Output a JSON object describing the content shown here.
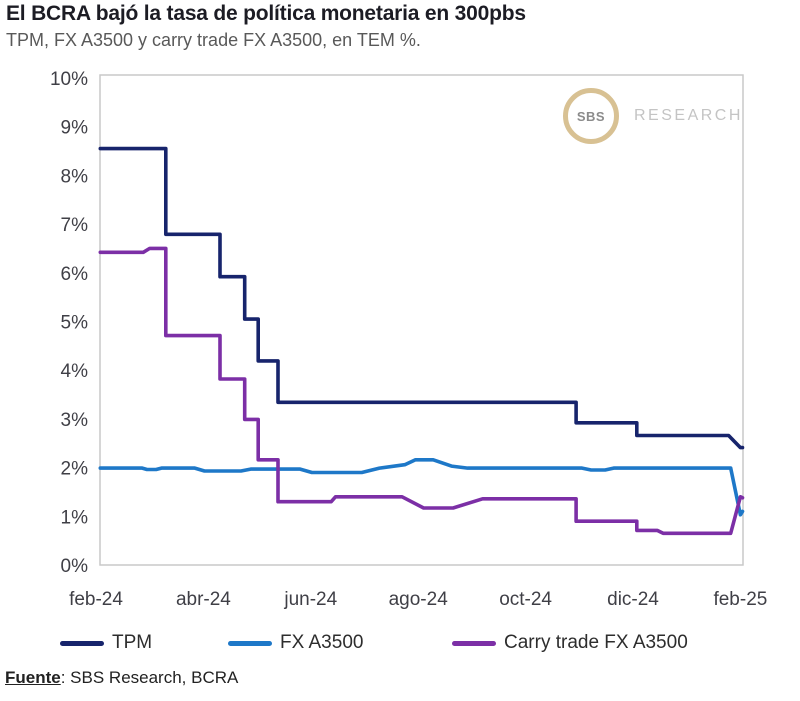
{
  "header": {
    "title": "El BCRA bajó la tasa de política monetaria en 300pbs",
    "subtitle": "TPM, FX A3500 y carry trade FX A3500, en TEM %."
  },
  "logo": {
    "text": "SBS",
    "research": "RESEARCH",
    "ring_color": "#d8c193",
    "text_color": "#8b8b8b",
    "research_color": "#c4c4c4"
  },
  "footer": {
    "source_label": "Fuente",
    "source_rest": ": SBS Research, BCRA"
  },
  "chart_data": {
    "type": "line",
    "title": "El BCRA bajó la tasa de política monetaria en 300pbs",
    "subtitle": "TPM, FX A3500 y carry trade FX A3500, en TEM %.",
    "x_unit": "months since feb-24",
    "xlim": [
      0,
      12.05
    ],
    "ylim": [
      0,
      10
    ],
    "grid": false,
    "legend_position": "bottom",
    "colors": {
      "plot_border": "#c9c9c9",
      "axis_text": "#3f3f46"
    },
    "y_ticks": [
      {
        "value": 0,
        "label": "0%"
      },
      {
        "value": 1,
        "label": "1%"
      },
      {
        "value": 2,
        "label": "2%"
      },
      {
        "value": 3,
        "label": "3%"
      },
      {
        "value": 4,
        "label": "4%"
      },
      {
        "value": 5,
        "label": "5%"
      },
      {
        "value": 6,
        "label": "6%"
      },
      {
        "value": 7,
        "label": "7%"
      },
      {
        "value": 8,
        "label": "8%"
      },
      {
        "value": 9,
        "label": "9%"
      },
      {
        "value": 10,
        "label": "10%"
      }
    ],
    "x_ticks": [
      {
        "month": 0,
        "label": "feb-24"
      },
      {
        "month": 2,
        "label": "abr-24"
      },
      {
        "month": 4,
        "label": "jun-24"
      },
      {
        "month": 6,
        "label": "ago-24"
      },
      {
        "month": 8,
        "label": "oct-24"
      },
      {
        "month": 10,
        "label": "dic-24"
      },
      {
        "month": 12,
        "label": "feb-25"
      }
    ],
    "series": [
      {
        "name": "TPM",
        "color": "#17246c",
        "points": [
          [
            0.08,
            8.55
          ],
          [
            1.3,
            8.55
          ],
          [
            1.3,
            6.79
          ],
          [
            2.31,
            6.79
          ],
          [
            2.31,
            5.92
          ],
          [
            2.77,
            5.92
          ],
          [
            2.77,
            5.05
          ],
          [
            3.02,
            5.05
          ],
          [
            3.02,
            4.19
          ],
          [
            3.39,
            4.19
          ],
          [
            3.39,
            3.34
          ],
          [
            8.94,
            3.34
          ],
          [
            8.94,
            2.92
          ],
          [
            10.07,
            2.92
          ],
          [
            10.07,
            2.66
          ],
          [
            11.78,
            2.66
          ],
          [
            12.0,
            2.41
          ],
          [
            12.04,
            2.41
          ]
        ]
      },
      {
        "name": "FX A3500",
        "color": "#1e78c8",
        "points": [
          [
            0.08,
            1.99
          ],
          [
            0.86,
            1.99
          ],
          [
            0.95,
            1.96
          ],
          [
            1.12,
            1.96
          ],
          [
            1.22,
            1.99
          ],
          [
            1.84,
            1.99
          ],
          [
            2.02,
            1.93
          ],
          [
            2.7,
            1.93
          ],
          [
            2.88,
            1.97
          ],
          [
            3.8,
            1.97
          ],
          [
            4.02,
            1.9
          ],
          [
            4.95,
            1.9
          ],
          [
            5.28,
            1.99
          ],
          [
            5.75,
            2.06
          ],
          [
            5.95,
            2.16
          ],
          [
            6.28,
            2.16
          ],
          [
            6.62,
            2.03
          ],
          [
            6.92,
            1.99
          ],
          [
            9.05,
            1.99
          ],
          [
            9.22,
            1.95
          ],
          [
            9.48,
            1.95
          ],
          [
            9.64,
            1.99
          ],
          [
            11.82,
            1.99
          ],
          [
            12.0,
            1.03
          ],
          [
            12.04,
            1.1
          ]
        ]
      },
      {
        "name": "Carry trade FX A3500",
        "color": "#7c2fa6",
        "points": [
          [
            0.08,
            6.42
          ],
          [
            0.88,
            6.42
          ],
          [
            1.0,
            6.5
          ],
          [
            1.3,
            6.5
          ],
          [
            1.3,
            4.71
          ],
          [
            2.31,
            4.71
          ],
          [
            2.31,
            3.82
          ],
          [
            2.77,
            3.82
          ],
          [
            2.77,
            2.99
          ],
          [
            3.02,
            2.99
          ],
          [
            3.02,
            2.16
          ],
          [
            3.39,
            2.16
          ],
          [
            3.39,
            1.3
          ],
          [
            4.38,
            1.3
          ],
          [
            4.46,
            1.4
          ],
          [
            5.7,
            1.4
          ],
          [
            6.1,
            1.17
          ],
          [
            6.65,
            1.17
          ],
          [
            7.2,
            1.36
          ],
          [
            8.94,
            1.36
          ],
          [
            8.94,
            0.9
          ],
          [
            10.07,
            0.9
          ],
          [
            10.07,
            0.71
          ],
          [
            10.45,
            0.71
          ],
          [
            10.56,
            0.65
          ],
          [
            11.82,
            0.65
          ],
          [
            12.0,
            1.4
          ],
          [
            12.04,
            1.38
          ]
        ]
      }
    ]
  }
}
